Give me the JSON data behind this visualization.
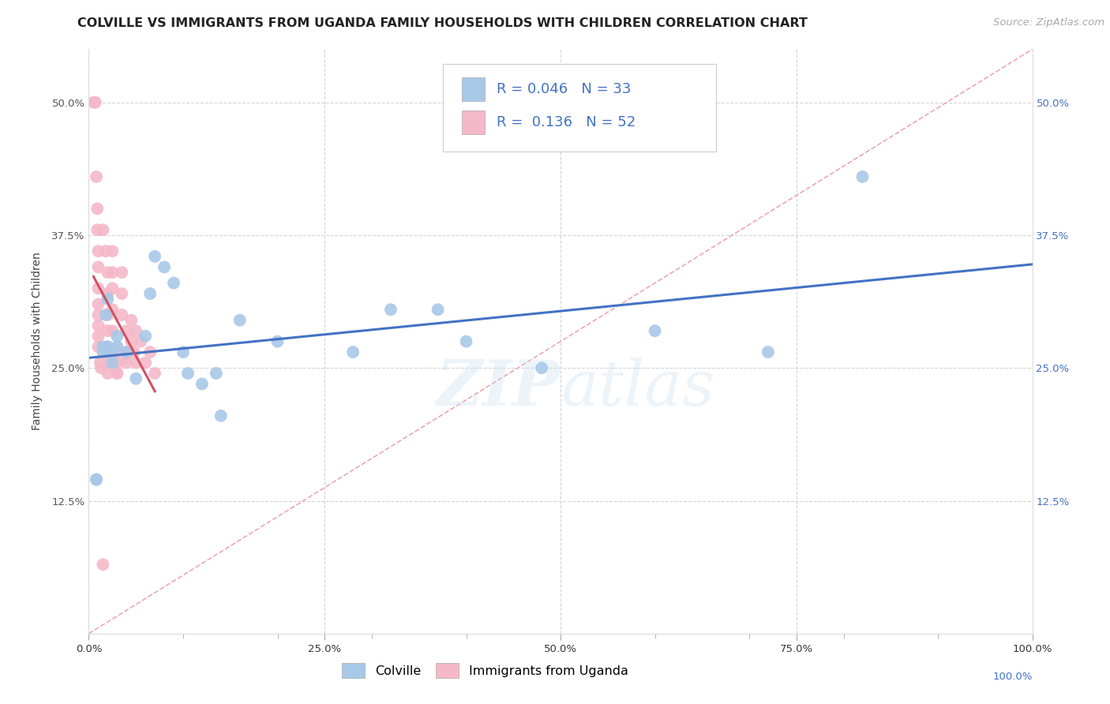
{
  "title": "COLVILLE VS IMMIGRANTS FROM UGANDA FAMILY HOUSEHOLDS WITH CHILDREN CORRELATION CHART",
  "source": "Source: ZipAtlas.com",
  "ylabel": "Family Households with Children",
  "watermark": "ZIPAtlas",
  "legend_colville": "Colville",
  "legend_uganda": "Immigrants from Uganda",
  "r_colville": 0.046,
  "n_colville": 33,
  "r_uganda": 0.136,
  "n_uganda": 52,
  "colville_color": "#a8c8e8",
  "uganda_color": "#f5b8c8",
  "colville_line_color": "#4472c4",
  "uganda_line_color": "#d45060",
  "diag_color": "#e0a0a8",
  "xlim": [
    0.0,
    1.0
  ],
  "ylim": [
    0.0,
    0.55
  ],
  "xticks_major": [
    0.0,
    0.25,
    0.5,
    0.75,
    1.0
  ],
  "xtick_labels_major": [
    "0.0%",
    "25.0%",
    "50.0%",
    "75.0%",
    "100.0%"
  ],
  "yticks": [
    0.0,
    0.125,
    0.25,
    0.375,
    0.5
  ],
  "ytick_labels_left": [
    "",
    "12.5%",
    "25.0%",
    "37.5%",
    "50.0%"
  ],
  "ytick_labels_right": [
    "",
    "12.5%",
    "25.0%",
    "37.5%",
    "50.0%"
  ],
  "colville_x": [
    0.008,
    0.008,
    0.015,
    0.015,
    0.018,
    0.02,
    0.02,
    0.025,
    0.025,
    0.03,
    0.03,
    0.04,
    0.05,
    0.06,
    0.065,
    0.07,
    0.08,
    0.09,
    0.1,
    0.105,
    0.12,
    0.135,
    0.14,
    0.16,
    0.2,
    0.28,
    0.32,
    0.37,
    0.4,
    0.48,
    0.6,
    0.72,
    0.82
  ],
  "colville_y": [
    0.145,
    0.145,
    0.27,
    0.265,
    0.3,
    0.315,
    0.27,
    0.265,
    0.255,
    0.28,
    0.27,
    0.265,
    0.24,
    0.28,
    0.32,
    0.355,
    0.345,
    0.33,
    0.265,
    0.245,
    0.235,
    0.245,
    0.205,
    0.295,
    0.275,
    0.265,
    0.305,
    0.305,
    0.275,
    0.25,
    0.285,
    0.265,
    0.43
  ],
  "uganda_x": [
    0.005,
    0.007,
    0.008,
    0.009,
    0.009,
    0.01,
    0.01,
    0.01,
    0.01,
    0.01,
    0.01,
    0.01,
    0.01,
    0.012,
    0.013,
    0.015,
    0.015,
    0.018,
    0.02,
    0.02,
    0.02,
    0.02,
    0.02,
    0.02,
    0.02,
    0.02,
    0.025,
    0.025,
    0.025,
    0.025,
    0.025,
    0.03,
    0.03,
    0.03,
    0.03,
    0.03,
    0.035,
    0.035,
    0.035,
    0.04,
    0.04,
    0.04,
    0.04,
    0.045,
    0.045,
    0.048,
    0.05,
    0.05,
    0.055,
    0.06,
    0.065,
    0.07
  ],
  "uganda_y": [
    0.5,
    0.5,
    0.43,
    0.4,
    0.38,
    0.36,
    0.345,
    0.325,
    0.31,
    0.3,
    0.29,
    0.28,
    0.27,
    0.255,
    0.25,
    0.065,
    0.38,
    0.36,
    0.34,
    0.32,
    0.3,
    0.285,
    0.27,
    0.265,
    0.255,
    0.245,
    0.36,
    0.34,
    0.325,
    0.305,
    0.285,
    0.265,
    0.255,
    0.245,
    0.27,
    0.245,
    0.34,
    0.32,
    0.3,
    0.285,
    0.265,
    0.255,
    0.26,
    0.295,
    0.275,
    0.265,
    0.255,
    0.285,
    0.275,
    0.255,
    0.265,
    0.245
  ],
  "background_color": "#ffffff",
  "grid_color": "#d0d0d0",
  "title_fontsize": 11.5,
  "axis_label_fontsize": 10,
  "tick_fontsize": 9.5,
  "legend_fontsize": 12,
  "source_fontsize": 9.5
}
